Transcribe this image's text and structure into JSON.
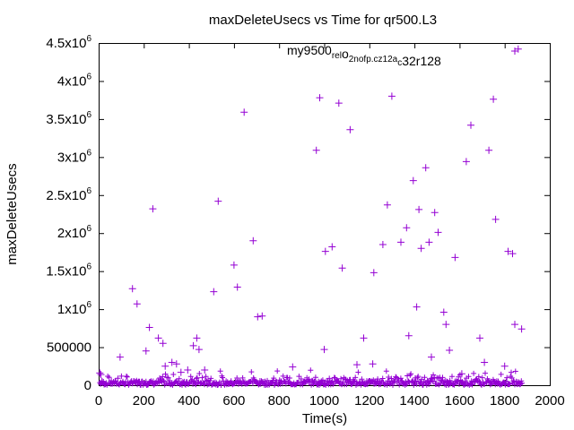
{
  "chart_data": {
    "type": "scatter",
    "title": "maxDeleteUsecs vs Time for qr500.L3",
    "xlabel": "Time(s)",
    "ylabel": "maxDeleteUsecs",
    "xlim": [
      0,
      2000
    ],
    "ylim": [
      0,
      4500000
    ],
    "x_ticks": [
      0,
      200,
      400,
      600,
      800,
      1000,
      1200,
      1400,
      1600,
      1800,
      2000
    ],
    "x_tick_labels": [
      "0",
      "200",
      "400",
      "600",
      "800",
      "1000",
      "1200",
      "1400",
      "1600",
      "1800",
      "2000"
    ],
    "y_ticks": [
      0,
      500000,
      1000000,
      1500000,
      2000000,
      2500000,
      3000000,
      3500000,
      4000000,
      4500000
    ],
    "y_tick_labels": [
      {
        "base": "0",
        "exp": ""
      },
      {
        "base": "500000",
        "exp": ""
      },
      {
        "base": "1x10",
        "exp": "6"
      },
      {
        "base": "1.5x10",
        "exp": "6"
      },
      {
        "base": "2x10",
        "exp": "6"
      },
      {
        "base": "2.5x10",
        "exp": "6"
      },
      {
        "base": "3x10",
        "exp": "6"
      },
      {
        "base": "3.5x10",
        "exp": "6"
      },
      {
        "base": "4x10",
        "exp": "6"
      },
      {
        "base": "4.5x10",
        "exp": "6"
      }
    ],
    "legend_position": "top-right",
    "series": [
      {
        "name": "my9500_rel_o2nofp.cz12a_c32r128",
        "name_parts": [
          {
            "text": "my9500",
            "sub": false
          },
          {
            "text": "rel",
            "sub": true
          },
          {
            "text": "o",
            "sub": false
          },
          {
            "text": "2nofp.cz12a",
            "sub": true
          },
          {
            "text": "c",
            "sub": true
          },
          {
            "text": "32r128",
            "sub": false
          }
        ],
        "color": "#9400d3",
        "marker": "plus",
        "x": [
          5,
          10,
          15,
          95,
          150,
          170,
          210,
          225,
          240,
          265,
          285,
          295,
          325,
          345,
          365,
          395,
          420,
          435,
          445,
          470,
          510,
          530,
          600,
          615,
          645,
          685,
          705,
          725,
          860,
          965,
          980,
          1000,
          1005,
          1035,
          1065,
          1080,
          1115,
          1145,
          1175,
          1215,
          1220,
          1260,
          1280,
          1300,
          1340,
          1365,
          1375,
          1395,
          1410,
          1420,
          1430,
          1450,
          1465,
          1475,
          1490,
          1505,
          1530,
          1540,
          1555,
          1580,
          1610,
          1630,
          1650,
          1690,
          1710,
          1730,
          1750,
          1760,
          1800,
          1815,
          1835,
          1845,
          1860,
          1875
        ],
        "y": [
          160000,
          140000,
          50000,
          370000,
          1270000,
          1070000,
          450000,
          760000,
          2320000,
          620000,
          550000,
          250000,
          300000,
          280000,
          170000,
          200000,
          520000,
          620000,
          470000,
          200000,
          1230000,
          2420000,
          1580000,
          1290000,
          3590000,
          1900000,
          900000,
          910000,
          240000,
          3090000,
          3780000,
          470000,
          1760000,
          1820000,
          3710000,
          1540000,
          3360000,
          270000,
          620000,
          280000,
          1480000,
          1850000,
          2370000,
          3800000,
          1880000,
          2070000,
          650000,
          2690000,
          1030000,
          2310000,
          1800000,
          2860000,
          1880000,
          370000,
          2270000,
          2010000,
          960000,
          800000,
          460000,
          1680000,
          150000,
          2940000,
          3420000,
          620000,
          300000,
          3090000,
          3760000,
          2180000,
          250000,
          1760000,
          1730000,
          800000,
          4420000,
          740000
        ]
      }
    ]
  }
}
